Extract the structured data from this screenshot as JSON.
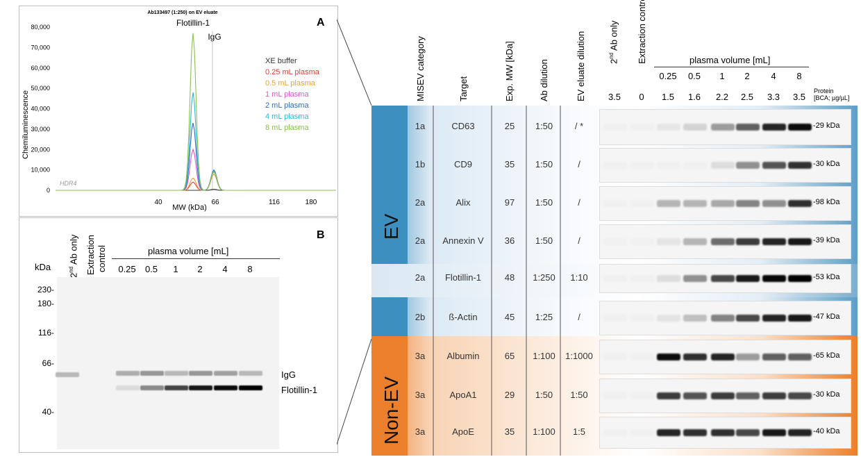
{
  "panelA": {
    "letter": "A",
    "title": "Ab133497 (1:250) on EV eluate",
    "ylabel": "Chemiluminescence",
    "xlabel": "MW (kDa)",
    "watermark": "HDR4",
    "peak_labels": {
      "flotillin": "Flotillin-1",
      "igg": "IgG"
    },
    "legend": [
      {
        "label": "XE buffer",
        "color": "#333333"
      },
      {
        "label": "0.25 mL plasma",
        "color": "#e0403a"
      },
      {
        "label": "0.5 mL plasma",
        "color": "#e8a23c"
      },
      {
        "label": "1 mL plasma",
        "color": "#e055c8"
      },
      {
        "label": "2 mL plasma",
        "color": "#2f6ebf"
      },
      {
        "label": "4 mL plasma",
        "color": "#33b5d6"
      },
      {
        "label": "8 mL plasma",
        "color": "#8ac24a"
      }
    ]
  },
  "chart_data": {
    "type": "line",
    "title": "Ab133497 (1:250) on EV eluate",
    "xlabel": "MW (kDa)",
    "ylabel": "Chemiluminescence",
    "x_ticks": [
      "40",
      "66",
      "116",
      "180"
    ],
    "y_ticks": [
      "0",
      "10,000",
      "20,000",
      "30,000",
      "40,000",
      "50,000",
      "60,000",
      "70,000",
      "80,000"
    ],
    "ylim": [
      0,
      80000
    ],
    "series": [
      {
        "name": "XE buffer",
        "peak_flotillin": 0,
        "peak_igg": 500
      },
      {
        "name": "0.25 mL plasma",
        "peak_flotillin": 4000,
        "peak_igg": 9500
      },
      {
        "name": "0.5 mL plasma",
        "peak_flotillin": 6000,
        "peak_igg": 8000
      },
      {
        "name": "1 mL plasma",
        "peak_flotillin": 20000,
        "peak_igg": 9000
      },
      {
        "name": "2 mL plasma",
        "peak_flotillin": 33000,
        "peak_igg": 10000
      },
      {
        "name": "4 mL plasma",
        "peak_flotillin": 48000,
        "peak_igg": 9500
      },
      {
        "name": "8 mL plasma",
        "peak_flotillin": 77000,
        "peak_igg": 9000
      }
    ]
  },
  "panelB": {
    "letter": "B",
    "kda": "kDa",
    "lane_labels": [
      "0.25",
      "0.5",
      "1",
      "2",
      "4",
      "8"
    ],
    "ab_only_a": "2",
    "ab_only_b": "nd",
    "ab_only_c": " Ab only",
    "extraction_1": "Extraction",
    "extraction_2": "control",
    "plasma_header": "plasma volume [mL]",
    "markers": [
      "230",
      "180",
      "116",
      "66",
      "40"
    ],
    "band_labels": [
      "IgG",
      "Flotillin-1"
    ],
    "igg_intensity": [
      0.25,
      0.35,
      0.2,
      0.35,
      0.3,
      0.2
    ],
    "flot_intensity": [
      0.05,
      0.4,
      0.7,
      0.9,
      0.95,
      1.0
    ]
  },
  "table": {
    "col_headers": {
      "misev": "MISEV category",
      "target": "Target",
      "mw": "Exp. MW [kDa]",
      "ab_dil": "Ab dilution",
      "ev_dil": "EV eluate dilution",
      "ab_only_a": "2",
      "ab_only_b": "nd",
      "ab_only_c": " Ab only",
      "extraction": "Extraction control",
      "plasma": "plasma volume [mL]"
    },
    "plasma_lanes": [
      "0.25",
      "0.5",
      "1",
      "2",
      "4",
      "8"
    ],
    "protein_label_1": "Protein",
    "protein_label_2": "[BCA; µg/µL]",
    "protein_values": [
      "3.5",
      "0",
      "1.5",
      "1.6",
      "2.2",
      "2.5",
      "3.3",
      "3.5"
    ],
    "groups": {
      "ev": "EV",
      "non_ev": "Non-EV"
    },
    "rows": [
      {
        "cat": "1a",
        "target": "CD63",
        "mw": "25",
        "ab": "1:50",
        "ev": "/ *",
        "kda": "-29 kDa",
        "group": "ev",
        "bands": [
          0,
          0,
          0.04,
          0.12,
          0.35,
          0.6,
          0.85,
          0.95
        ]
      },
      {
        "cat": "1b",
        "target": "CD9",
        "mw": "35",
        "ab": "1:50",
        "ev": "/",
        "kda": "-30 kDa",
        "group": "ev",
        "bands": [
          0,
          0,
          0,
          0,
          0.08,
          0.4,
          0.65,
          0.8
        ]
      },
      {
        "cat": "2a",
        "target": "Alix",
        "mw": "97",
        "ab": "1:50",
        "ev": "/",
        "kda": "-98 kDa",
        "group": "ev",
        "bands": [
          0,
          0,
          0.25,
          0.25,
          0.3,
          0.45,
          0.4,
          0.8
        ]
      },
      {
        "cat": "2a",
        "target": "Annexin V",
        "mw": "36",
        "ab": "1:50",
        "ev": "/",
        "kda": "-39 kDa",
        "group": "ev",
        "bands": [
          0,
          0,
          0.05,
          0.25,
          0.55,
          0.75,
          0.85,
          0.9
        ]
      },
      {
        "cat": "2a",
        "target": "Flotillin-1",
        "mw": "48",
        "ab": "1:250",
        "ev": "1:10",
        "kda": "-53 kDa",
        "group": "ev_light",
        "bands": [
          0,
          0,
          0.08,
          0.4,
          0.7,
          0.9,
          0.97,
          1.0
        ]
      },
      {
        "cat": "2b",
        "target": "ß-Actin",
        "mw": "45",
        "ab": "1:25",
        "ev": "/",
        "kda": "-47 kDa",
        "group": "ev",
        "bands": [
          0,
          0,
          0.05,
          0.2,
          0.45,
          0.7,
          0.85,
          0.9
        ]
      },
      {
        "cat": "3a",
        "target": "Albumin",
        "mw": "65",
        "ab": "1:100",
        "ev": "1:1000",
        "kda": "-65 kDa",
        "group": "non_ev",
        "bands": [
          0,
          0,
          0.95,
          0.8,
          0.85,
          0.35,
          0.6,
          0.6
        ]
      },
      {
        "cat": "3a",
        "target": "ApoA1",
        "mw": "29",
        "ab": "1:50",
        "ev": "1:50",
        "kda": "-30 kDa",
        "group": "non_ev",
        "bands": [
          0,
          0,
          0.75,
          0.65,
          0.75,
          0.6,
          0.75,
          0.7
        ]
      },
      {
        "cat": "3a",
        "target": "ApoE",
        "mw": "35",
        "ab": "1:100",
        "ev": "1:5",
        "kda": "-40 kDa",
        "group": "non_ev",
        "bands": [
          0,
          0,
          0.85,
          0.8,
          0.8,
          0.7,
          0.9,
          0.85
        ]
      }
    ]
  }
}
